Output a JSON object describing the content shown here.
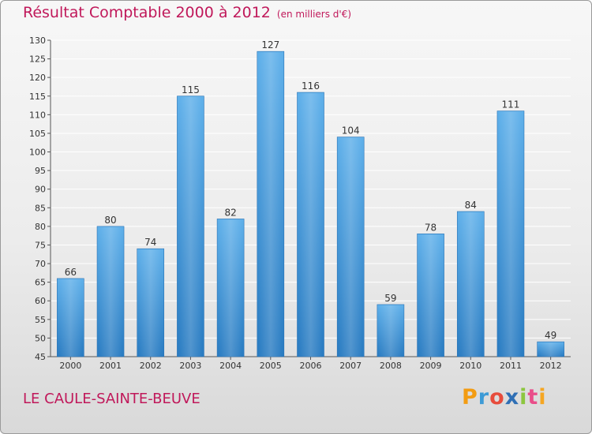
{
  "title": "Résultat Comptable 2000 à 2012",
  "subtitle": "(en milliers d'€)",
  "place": "LE CAULE-SAINTE-BEUVE",
  "logo": {
    "letters": [
      "P",
      "r",
      "o",
      "x",
      "i",
      "t",
      "i"
    ],
    "colors": [
      "#f39c12",
      "#3d9bd6",
      "#e74c3c",
      "#2f6fb5",
      "#8cc63f",
      "#e94e8a",
      "#f5a623"
    ]
  },
  "colors": {
    "bar": "#3d95d6",
    "title": "#c0185a",
    "grid": "#ffffff"
  },
  "chart_data": {
    "type": "bar",
    "categories": [
      "2000",
      "2001",
      "2002",
      "2003",
      "2004",
      "2005",
      "2006",
      "2007",
      "2008",
      "2009",
      "2010",
      "2011",
      "2012"
    ],
    "values": [
      66,
      80,
      74,
      115,
      82,
      127,
      116,
      104,
      59,
      78,
      84,
      111,
      49
    ],
    "title": "Résultat Comptable 2000 à 2012",
    "xlabel": "",
    "ylabel": "",
    "ylim": [
      45,
      130
    ],
    "yticks": [
      45,
      50,
      55,
      60,
      65,
      70,
      75,
      80,
      85,
      90,
      95,
      100,
      105,
      110,
      115,
      120,
      125,
      130
    ],
    "grid": true
  }
}
